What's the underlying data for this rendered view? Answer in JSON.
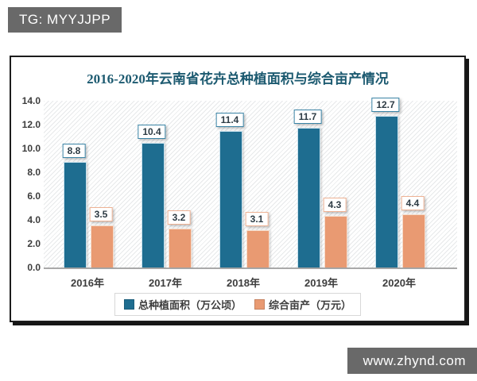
{
  "watermarks": {
    "top_left": "TG: MYYJJPP",
    "bottom_right": "www.zhynd.com"
  },
  "chart_data": {
    "type": "bar",
    "title": "2016-2020年云南省花卉总种植面积与综合亩产情况",
    "title_color": "#1c5a70",
    "categories": [
      "2016年",
      "2017年",
      "2018年",
      "2019年",
      "2020年"
    ],
    "series": [
      {
        "name": "总种植面积（万公顷）",
        "values": [
          8.8,
          10.4,
          11.4,
          11.7,
          12.7
        ],
        "color": "#1e6d90",
        "label_border": "#3a84a6"
      },
      {
        "name": "综合亩产（万元）",
        "values": [
          3.5,
          3.2,
          3.1,
          4.3,
          4.4
        ],
        "color": "#e99a72",
        "label_border": "#eeb294"
      }
    ],
    "ylim": [
      0,
      14
    ],
    "ytick_step": 2,
    "yticks": [
      "0.0",
      "2.0",
      "4.0",
      "6.0",
      "8.0",
      "10.0",
      "12.0",
      "14.0"
    ],
    "grid": false,
    "legend_position": "bottom",
    "plot_background": "diagonal-hatch"
  }
}
